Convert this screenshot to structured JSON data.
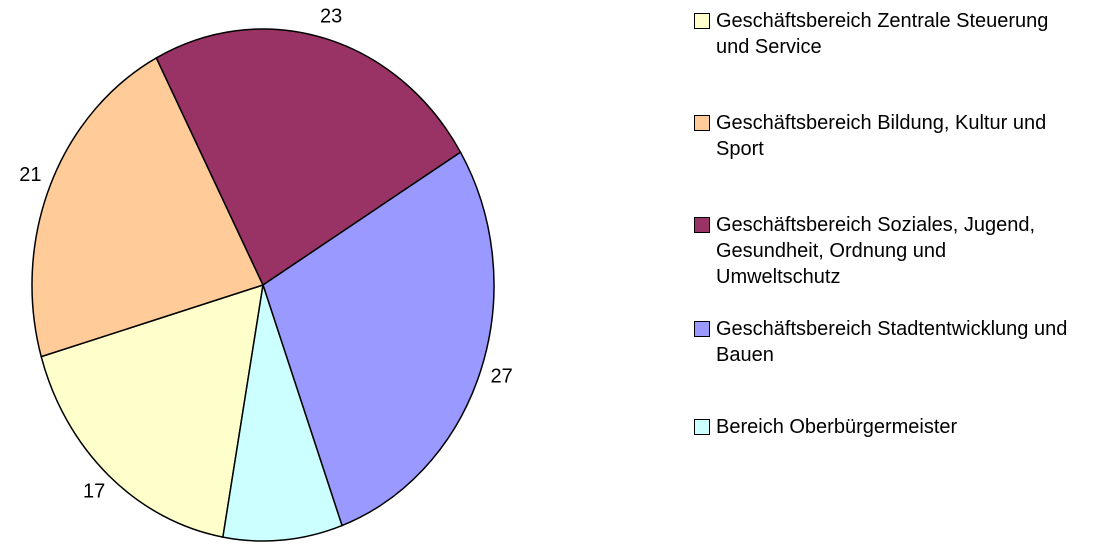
{
  "chart_data": {
    "type": "pie",
    "categories": [
      "Geschäftsbereich Zentrale Steuerung und Service",
      "Geschäftsbereich Bildung, Kultur und Sport",
      "Geschäftsbereich Soziales, Jugend, Gesundheit, Ordnung und Umweltschutz",
      "Geschäftsbereich Stadtentwicklung und Bauen",
      "Bereich Oberbürgermeister"
    ],
    "values": [
      17,
      21,
      23,
      27,
      8
    ],
    "colors": [
      "#ffffcc",
      "#ffcc99",
      "#993366",
      "#9999ff",
      "#ccffff"
    ],
    "legend": "right"
  }
}
